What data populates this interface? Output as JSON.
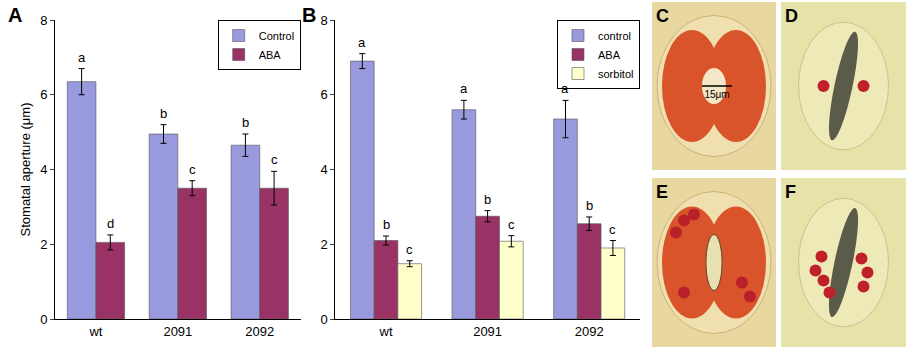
{
  "chart_data": [
    {
      "type": "bar",
      "title": "A",
      "y_label": "Stomatal aperture (μm)",
      "categories": [
        "wt",
        "2091",
        "2092"
      ],
      "series": [
        {
          "name": "Control",
          "color": "#9999dd",
          "values": [
            6.35,
            4.95,
            4.65
          ],
          "errors": [
            0.35,
            0.25,
            0.3
          ],
          "annotations": [
            "a",
            "b",
            "b"
          ]
        },
        {
          "name": "ABA",
          "color": "#993366",
          "values": [
            2.05,
            3.5,
            3.5
          ],
          "errors": [
            0.2,
            0.2,
            0.45
          ],
          "annotations": [
            "d",
            "c",
            "c"
          ]
        }
      ],
      "ylim": [
        0,
        8
      ],
      "yticks": [
        0,
        2,
        4,
        6,
        8
      ],
      "grid": false,
      "legend": "top right"
    },
    {
      "type": "bar",
      "title": "B",
      "categories": [
        "wt",
        "2091",
        "2092"
      ],
      "series": [
        {
          "name": "control",
          "color": "#9999dd",
          "values": [
            6.9,
            5.6,
            5.35
          ],
          "errors": [
            0.2,
            0.25,
            0.5
          ],
          "annotations": [
            "a",
            "a",
            "a"
          ]
        },
        {
          "name": "ABA",
          "color": "#993366",
          "values": [
            2.1,
            2.75,
            2.55
          ],
          "errors": [
            0.12,
            0.15,
            0.18
          ],
          "annotations": [
            "b",
            "b",
            "b"
          ]
        },
        {
          "name": "sorbitol",
          "color": "#ffffcc",
          "values": [
            1.48,
            2.08,
            1.9
          ],
          "errors": [
            0.08,
            0.15,
            0.2
          ],
          "annotations": [
            "c",
            "c",
            "c"
          ]
        }
      ],
      "ylim": [
        0,
        8
      ],
      "yticks": [
        0,
        2,
        4,
        6,
        8
      ],
      "grid": false,
      "legend": "top right"
    }
  ],
  "micrographs": [
    {
      "label": "C",
      "scale_bar": "15μm"
    },
    {
      "label": "D"
    },
    {
      "label": "E"
    },
    {
      "label": "F"
    }
  ]
}
